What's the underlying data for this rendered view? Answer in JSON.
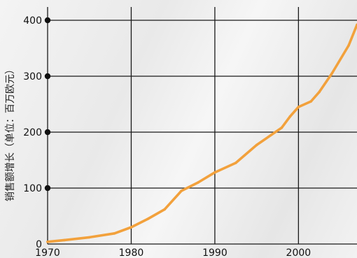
{
  "chart_data": {
    "type": "line",
    "title": "",
    "xlabel": "",
    "ylabel": "销售额增长（单位：百万欧元）",
    "xlim": [
      1970,
      2007
    ],
    "ylim": [
      0,
      400
    ],
    "x_ticks": [
      1970,
      1980,
      1990,
      2000
    ],
    "y_ticks": [
      0,
      100,
      200,
      300,
      400
    ],
    "grid": true,
    "colors": {
      "line": "#F2A13C",
      "grid": "#1a1a1a",
      "marker": "#111111"
    },
    "series": [
      {
        "x": [
          1970,
          1972,
          1975,
          1978,
          1980,
          1982,
          1984,
          1986,
          1988,
          1990,
          1992.5,
          1995,
          1998,
          1999,
          2000,
          2001.5,
          2002.5,
          2004,
          2006,
          2007
        ],
        "y": [
          4,
          7,
          12,
          19,
          30,
          45,
          62,
          95,
          110,
          128,
          145,
          177,
          208,
          228,
          245,
          255,
          272,
          305,
          355,
          392
        ]
      }
    ]
  }
}
